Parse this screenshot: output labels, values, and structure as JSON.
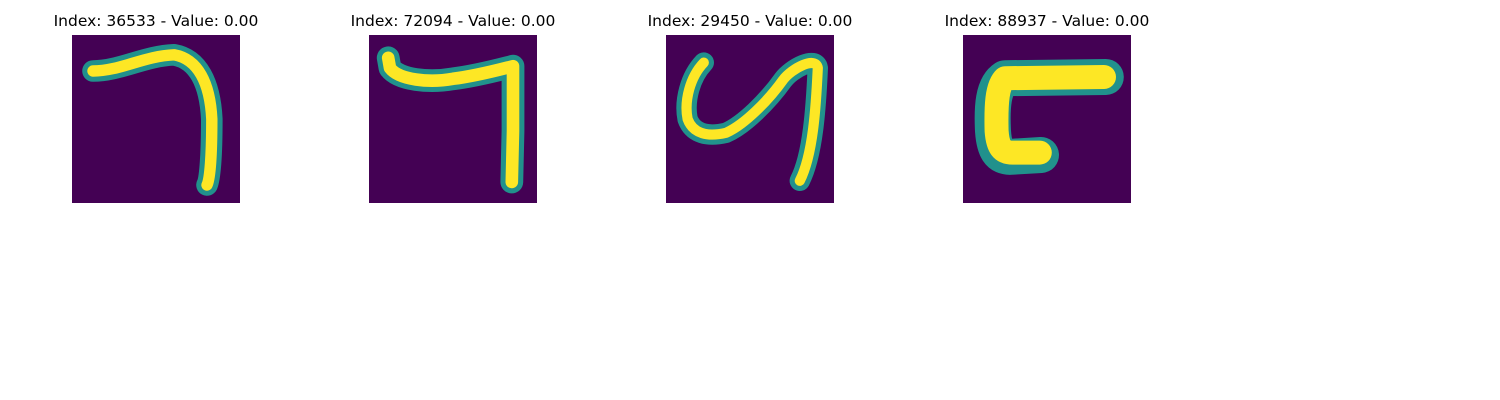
{
  "colors": {
    "background": "#ffffff",
    "low": "#440154",
    "mid": "#21918c",
    "high": "#fde725",
    "title": "#000000"
  },
  "chart_data": [
    {
      "type": "heatmap",
      "title": "Index: 36533 - Value: 0.00",
      "colormap": "viridis",
      "grid": false,
      "axes": "off",
      "image_description": "handwritten stroke: horizontal bar at top curving down along the right side"
    },
    {
      "type": "heatmap",
      "title": "Index: 72094 - Value: 0.00",
      "colormap": "viridis",
      "grid": false,
      "axes": "off",
      "image_description": "handwritten stroke: horizontal bar at top with vertical stroke down the right side"
    },
    {
      "type": "heatmap",
      "title": "Index: 29450 - Value: 0.00",
      "colormap": "viridis",
      "grid": false,
      "axes": "off",
      "image_description": "handwritten stroke: U-shaped loop on the left joined to a long vertical stroke on the right"
    },
    {
      "type": "heatmap",
      "title": "Index: 88937 - Value: 0.00",
      "colormap": "viridis",
      "grid": false,
      "axes": "off",
      "image_description": "thick handwritten stroke: top bar, left vertical, short bottom bar"
    }
  ]
}
